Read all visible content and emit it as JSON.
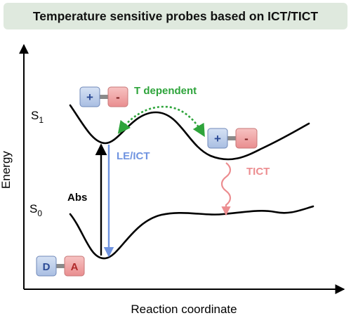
{
  "title": "Temperature sensitive probes based on ICT/TICT",
  "axes": {
    "y_label": "Energy",
    "x_label": "Reaction coordinate"
  },
  "states": {
    "s1": "S",
    "s1_sub": "1",
    "s0": "S",
    "s0_sub": "0"
  },
  "labels": {
    "t_dependent": "T dependent",
    "le_ict": "LE/ICT",
    "tict": "TICT",
    "abs": "Abs"
  },
  "boxes": {
    "ground": {
      "donor": "D",
      "acceptor": "A"
    },
    "s1_left": {
      "donor": "+",
      "acceptor": "-"
    },
    "s1_right": {
      "donor": "+",
      "acceptor": "-"
    }
  },
  "colors": {
    "banner_bg": "#dfe9de",
    "green": "#2ea43b",
    "blue": "#7094e0",
    "pink": "#ec8d90",
    "donor_fill": "#bccde9",
    "acceptor_fill": "#f0a6a6",
    "donor_text": "#2b4a95",
    "acceptor_text": "#b02a2a"
  }
}
